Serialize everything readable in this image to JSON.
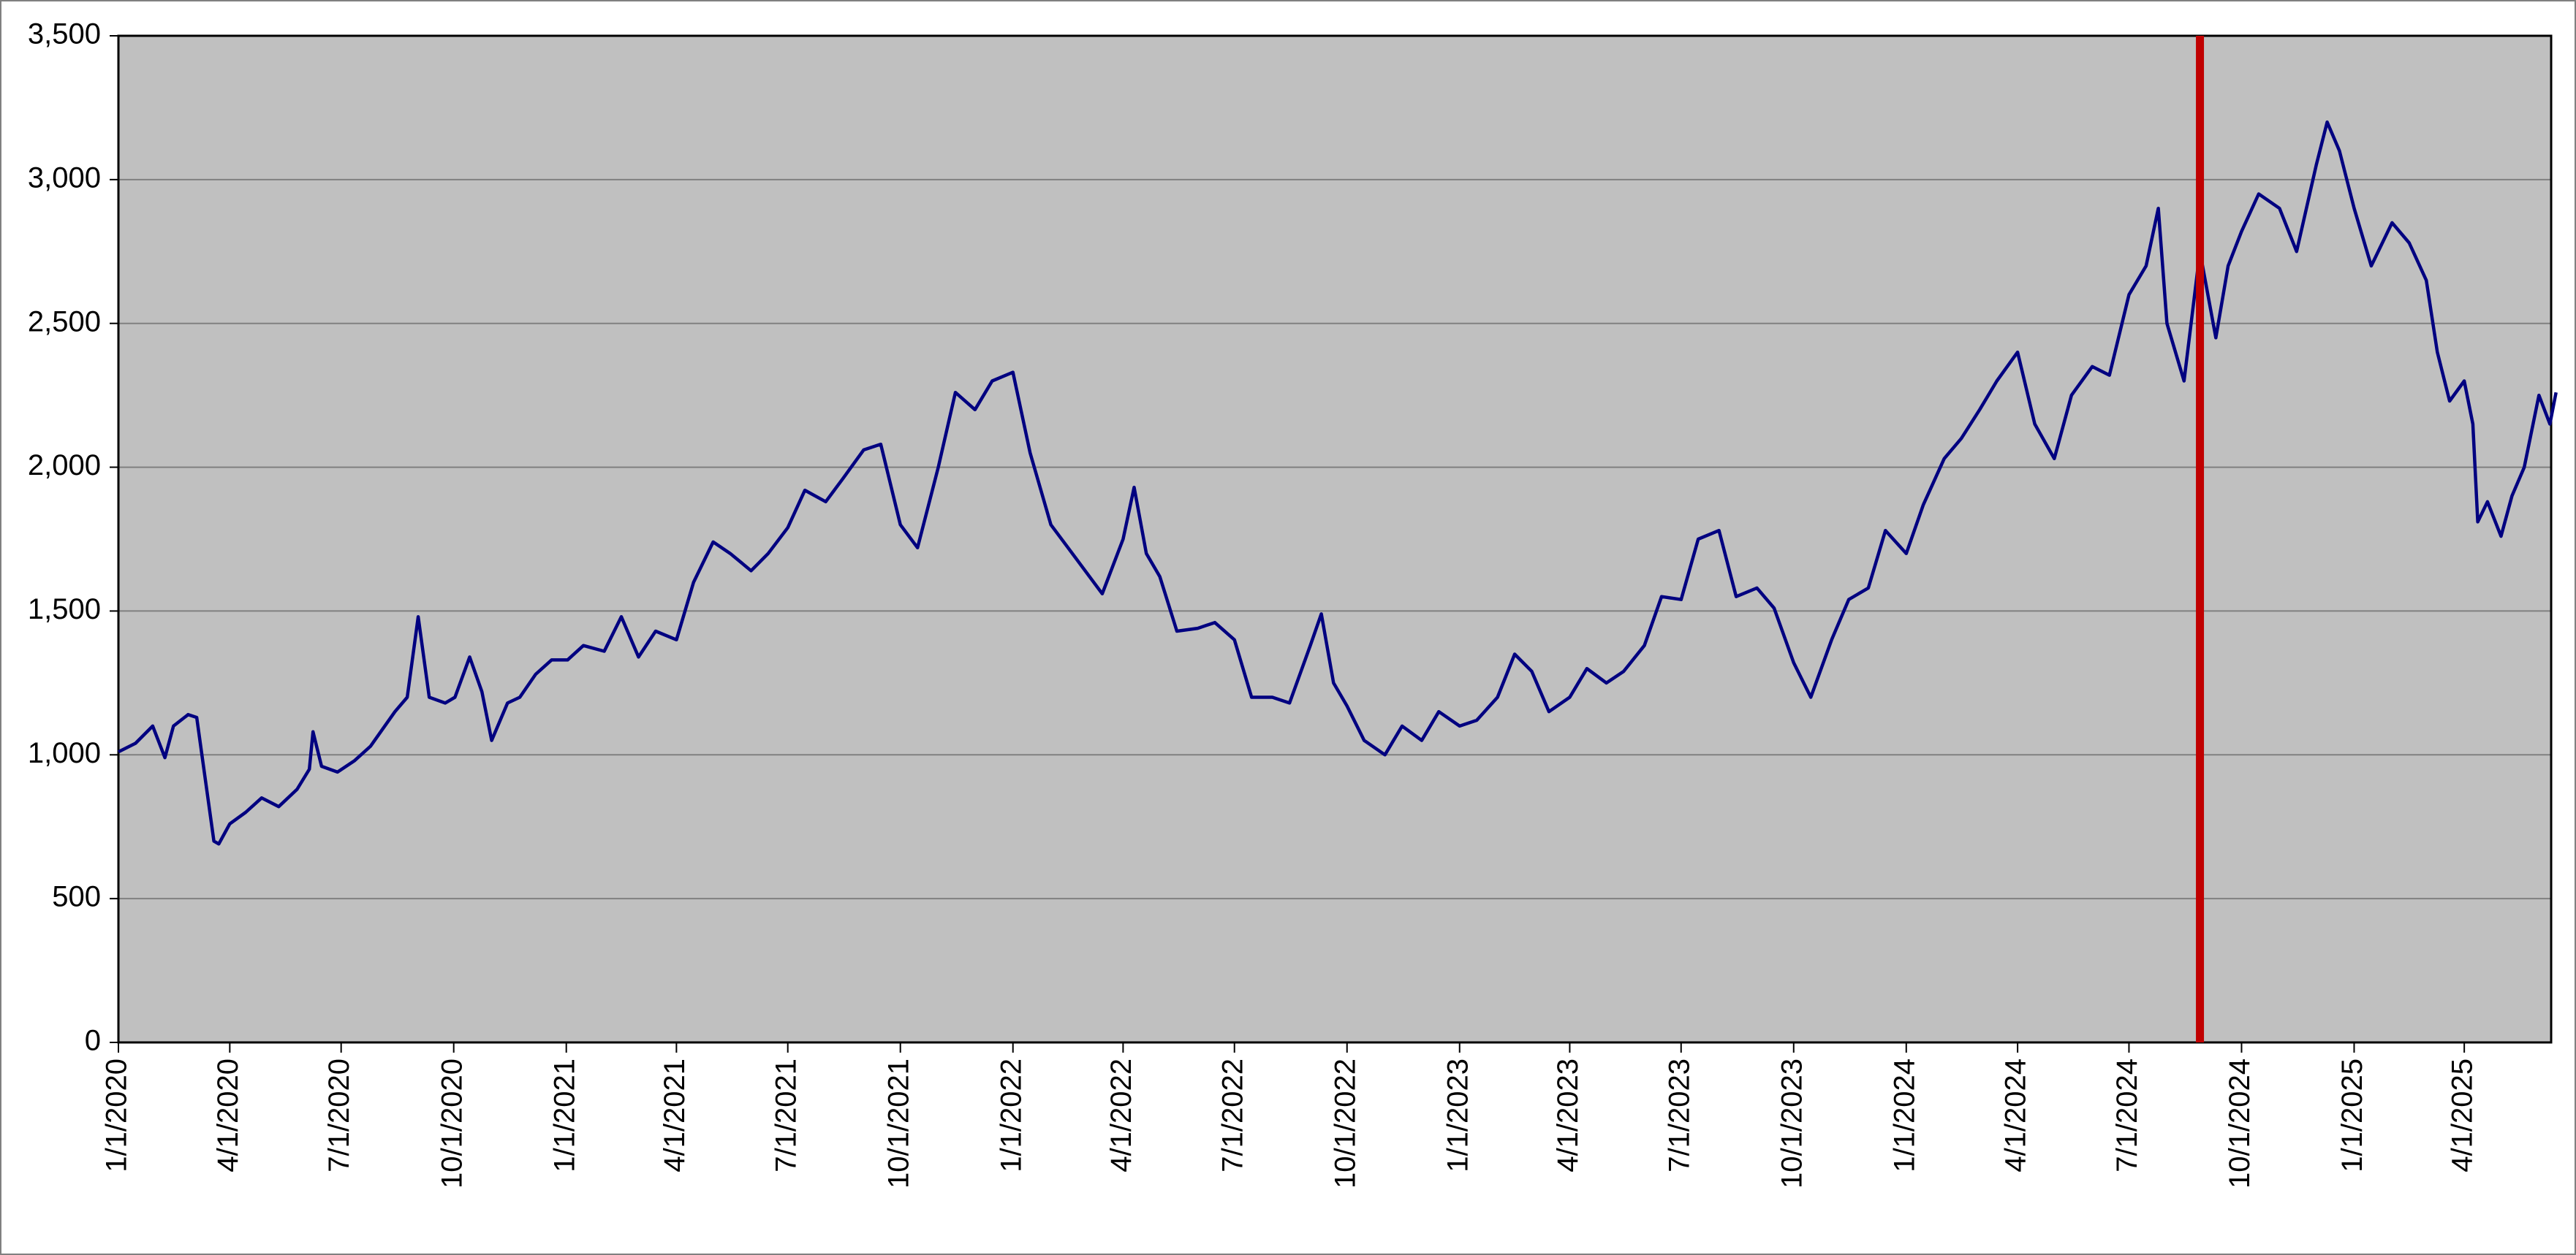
{
  "chart_data": {
    "type": "line",
    "series": [
      {
        "color": "#000080",
        "x": [
          "1/1/2020",
          "1/15/2020",
          "1/29/2020",
          "2/8/2020",
          "2/15/2020",
          "2/27/2020",
          "3/5/2020",
          "3/19/2020",
          "3/23/2020",
          "4/1/2020",
          "4/14/2020",
          "4/27/2020",
          "5/11/2020",
          "5/26/2020",
          "6/5/2020",
          "6/8/2020",
          "6/15/2020",
          "6/28/2020",
          "7/12/2020",
          "7/25/2020",
          "8/14/2020",
          "8/24/2020",
          "9/2/2020",
          "9/11/2020",
          "9/24/2020",
          "10/2/2020",
          "10/14/2020",
          "10/24/2020",
          "11/1/2020",
          "11/14/2020",
          "11/24/2020",
          "12/7/2020",
          "12/20/2020",
          "1/2/2021",
          "1/15/2021",
          "2/1/2021",
          "2/15/2021",
          "3/1/2021",
          "3/15/2021",
          "4/1/2021",
          "4/15/2021",
          "5/1/2021",
          "5/15/2021",
          "6/1/2021",
          "6/15/2021",
          "7/1/2021",
          "7/15/2021",
          "8/1/2021",
          "8/15/2021",
          "9/1/2021",
          "9/15/2021",
          "10/1/2021",
          "10/15/2021",
          "11/1/2021",
          "11/15/2021",
          "12/1/2021",
          "12/15/2021",
          "1/1/2022",
          "1/15/2022",
          "2/1/2022",
          "2/15/2022",
          "3/1/2022",
          "3/15/2022",
          "4/1/2022",
          "4/10/2022",
          "4/20/2022",
          "5/1/2022",
          "5/15/2022",
          "6/1/2022",
          "6/15/2022",
          "7/1/2022",
          "7/15/2022",
          "8/1/2022",
          "8/15/2022",
          "9/1/2022",
          "9/10/2022",
          "9/20/2022",
          "10/1/2022",
          "10/15/2022",
          "11/1/2022",
          "11/15/2022",
          "12/1/2022",
          "12/15/2022",
          "1/1/2023",
          "1/15/2023",
          "2/1/2023",
          "2/15/2023",
          "3/1/2023",
          "3/15/2023",
          "4/1/2023",
          "4/15/2023",
          "5/1/2023",
          "5/15/2023",
          "6/1/2023",
          "6/15/2023",
          "7/1/2023",
          "7/15/2023",
          "8/1/2023",
          "8/15/2023",
          "9/1/2023",
          "9/15/2023",
          "10/1/2023",
          "10/15/2023",
          "11/1/2023",
          "11/15/2023",
          "12/1/2023",
          "12/15/2023",
          "1/1/2024",
          "1/15/2024",
          "2/1/2024",
          "2/15/2024",
          "3/1/2024",
          "3/15/2024",
          "4/1/2024",
          "4/15/2024",
          "5/1/2024",
          "5/15/2024",
          "6/1/2024",
          "6/15/2024",
          "7/1/2024",
          "7/15/2024",
          "7/25/2024",
          "8/1/2024",
          "8/15/2024",
          "8/28/2024",
          "9/10/2024",
          "9/20/2024",
          "10/1/2024",
          "10/15/2024",
          "11/1/2024",
          "11/15/2024",
          "12/1/2024",
          "12/10/2024",
          "12/20/2024",
          "1/1/2025",
          "1/15/2025",
          "2/1/2025",
          "2/15/2025",
          "3/1/2025",
          "3/10/2025",
          "3/20/2025",
          "4/1/2025",
          "4/8/2025",
          "4/12/2025",
          "4/20/2025",
          "5/1/2025",
          "5/10/2025",
          "5/20/2025",
          "6/1/2025",
          "6/10/2025",
          "6/15/2025"
        ],
        "values": [
          1010,
          1040,
          1100,
          990,
          1100,
          1140,
          1130,
          700,
          690,
          760,
          800,
          850,
          820,
          880,
          950,
          1080,
          960,
          940,
          980,
          1030,
          1150,
          1200,
          1480,
          1200,
          1180,
          1200,
          1340,
          1220,
          1050,
          1180,
          1200,
          1280,
          1330,
          1330,
          1380,
          1360,
          1480,
          1340,
          1430,
          1400,
          1600,
          1740,
          1700,
          1640,
          1700,
          1790,
          1920,
          1880,
          1960,
          2060,
          2080,
          1800,
          1720,
          2000,
          2260,
          2200,
          2300,
          2330,
          2050,
          1800,
          1720,
          1640,
          1560,
          1750,
          1930,
          1700,
          1620,
          1430,
          1440,
          1460,
          1400,
          1200,
          1200,
          1180,
          1380,
          1490,
          1250,
          1170,
          1050,
          1000,
          1100,
          1050,
          1150,
          1100,
          1120,
          1200,
          1350,
          1290,
          1150,
          1200,
          1300,
          1250,
          1290,
          1380,
          1550,
          1540,
          1750,
          1780,
          1550,
          1580,
          1510,
          1320,
          1200,
          1400,
          1540,
          1580,
          1780,
          1700,
          1870,
          2030,
          2100,
          2200,
          2300,
          2400,
          2150,
          2030,
          2250,
          2350,
          2320,
          2600,
          2700,
          2900,
          2500,
          2300,
          2750,
          2450,
          2700,
          2820,
          2950,
          2900,
          2750,
          3050,
          3200,
          3100,
          2900,
          2700,
          2850,
          2780,
          2650,
          2400,
          2230,
          2300,
          2150,
          1810,
          1880,
          1760,
          1900,
          2000,
          2250,
          2150,
          2260
        ]
      }
    ],
    "xlim": [
      "1/1/2020",
      "6/11/2025"
    ],
    "xticks": [
      "1/1/2020",
      "4/1/2020",
      "7/1/2020",
      "10/1/2020",
      "1/1/2021",
      "4/1/2021",
      "7/1/2021",
      "10/1/2021",
      "1/1/2022",
      "4/1/2022",
      "7/1/2022",
      "10/1/2022",
      "1/1/2023",
      "4/1/2023",
      "7/1/2023",
      "10/1/2023",
      "1/1/2024",
      "4/1/2024",
      "7/1/2024",
      "10/1/2024",
      "1/1/2025",
      "4/1/2025"
    ],
    "ylim": [
      0,
      3500
    ],
    "yticks": [
      0,
      500,
      {
        "value": 1000,
        "label": "1,000"
      },
      {
        "value": 1500,
        "label": "1,500"
      },
      {
        "value": 2000,
        "label": "2,000"
      },
      {
        "value": 2500,
        "label": "2,500"
      },
      {
        "value": 3000,
        "label": "3,000"
      },
      {
        "value": 3500,
        "label": "3,500"
      }
    ],
    "grid": true,
    "reference_line": {
      "x": "8/28/2024",
      "color": "#c00000"
    }
  }
}
